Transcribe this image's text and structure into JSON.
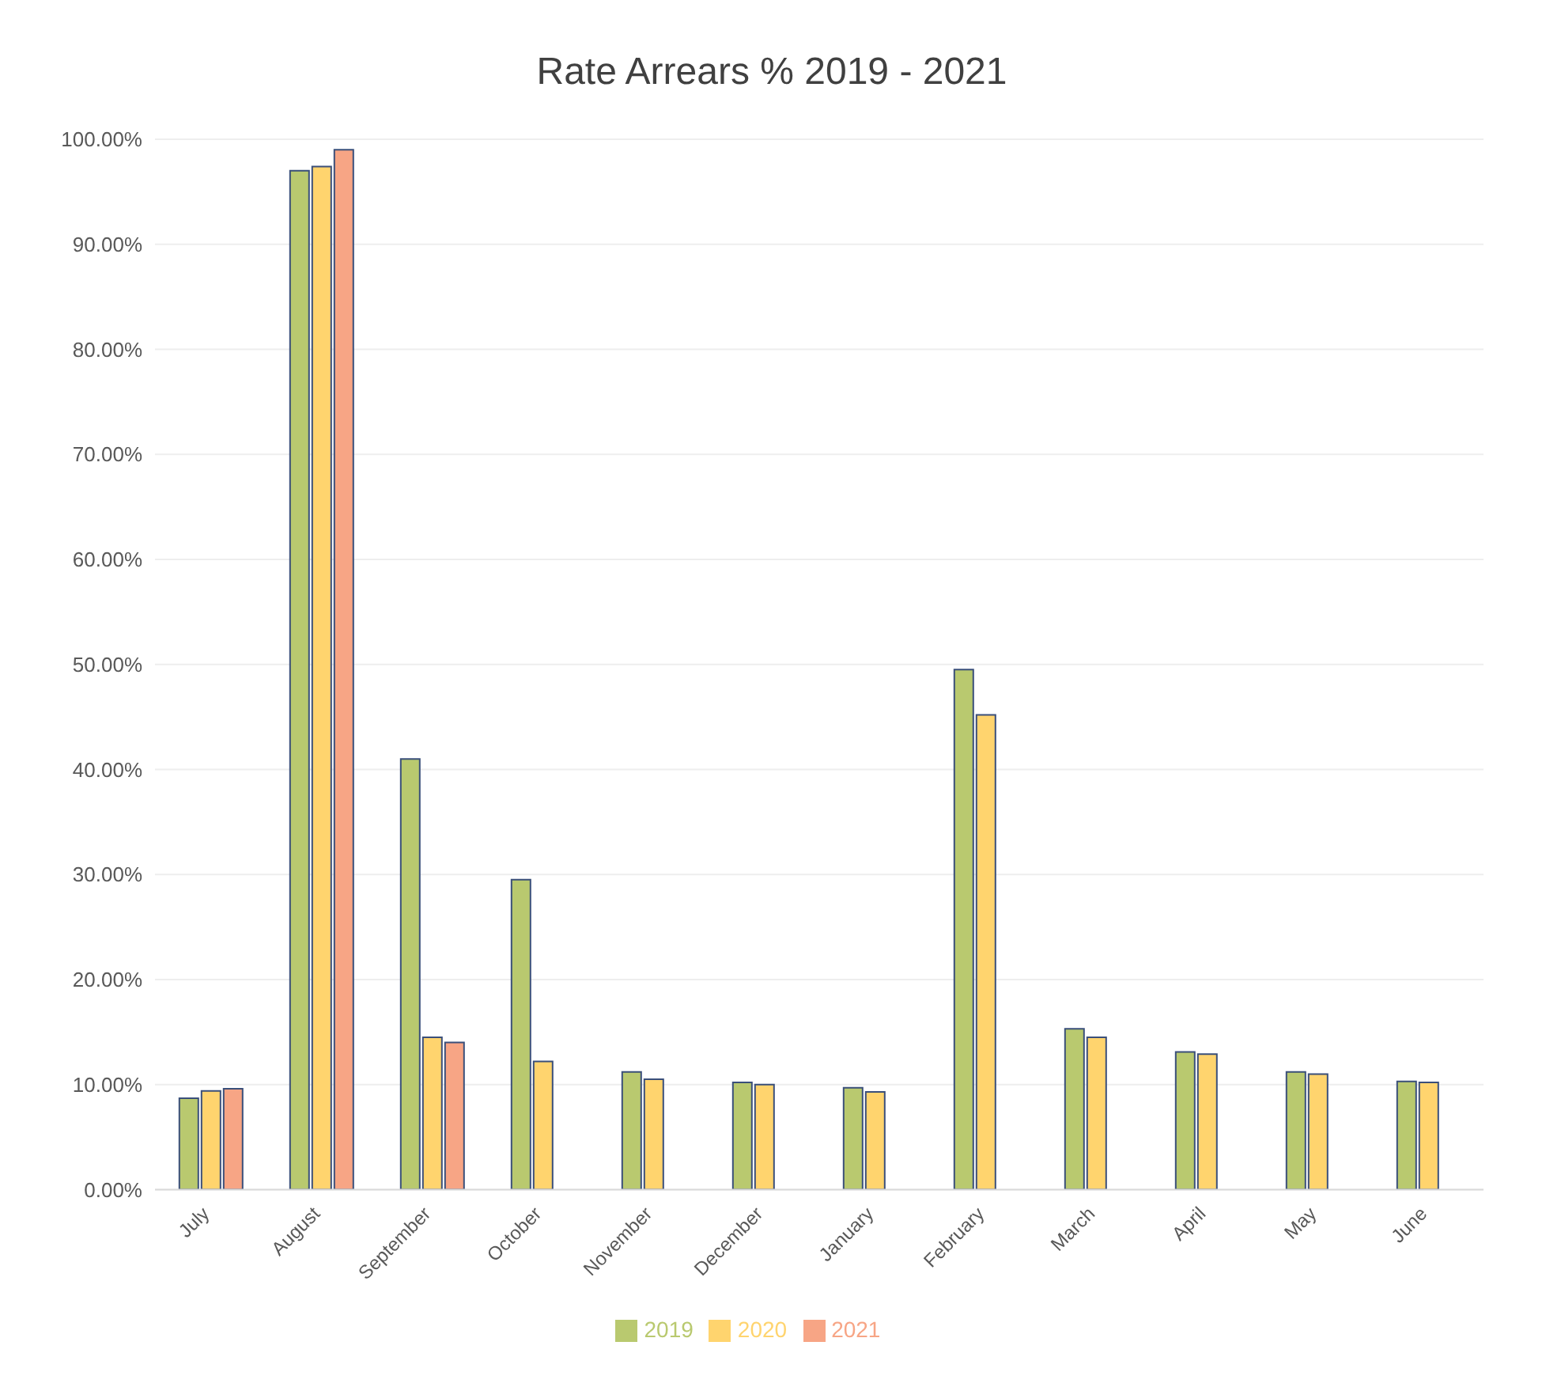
{
  "chart_data": {
    "type": "bar",
    "title": "Rate Arrears % 2019 - 2021",
    "categories": [
      "July",
      "August",
      "September",
      "October",
      "November",
      "December",
      "January",
      "February",
      "March",
      "April",
      "May",
      "June"
    ],
    "series": [
      {
        "name": "2019",
        "color": "#b9c96f",
        "values": [
          8.7,
          97.0,
          41.0,
          29.5,
          11.2,
          10.2,
          9.7,
          49.5,
          15.3,
          13.1,
          11.2,
          10.3
        ]
      },
      {
        "name": "2020",
        "color": "#ffd46e",
        "values": [
          9.4,
          97.4,
          14.5,
          12.2,
          10.5,
          10.0,
          9.3,
          45.2,
          14.5,
          12.9,
          11.0,
          10.2
        ]
      },
      {
        "name": "2021",
        "color": "#f7a585",
        "values": [
          9.6,
          99.0,
          14.0,
          null,
          null,
          null,
          null,
          null,
          null,
          null,
          null,
          null
        ]
      }
    ],
    "ylim": [
      0,
      100
    ],
    "yticks": [
      {
        "value": 0,
        "label": "0.00%"
      },
      {
        "value": 10,
        "label": "10.00%"
      },
      {
        "value": 20,
        "label": "20.00%"
      },
      {
        "value": 30,
        "label": "30.00%"
      },
      {
        "value": 40,
        "label": "40.00%"
      },
      {
        "value": 50,
        "label": "50.00%"
      },
      {
        "value": 60,
        "label": "60.00%"
      },
      {
        "value": 70,
        "label": "70.00%"
      },
      {
        "value": 80,
        "label": "80.00%"
      },
      {
        "value": 90,
        "label": "90.00%"
      },
      {
        "value": 100,
        "label": "100.00%"
      }
    ],
    "grid": "y",
    "legend": "bottom"
  }
}
